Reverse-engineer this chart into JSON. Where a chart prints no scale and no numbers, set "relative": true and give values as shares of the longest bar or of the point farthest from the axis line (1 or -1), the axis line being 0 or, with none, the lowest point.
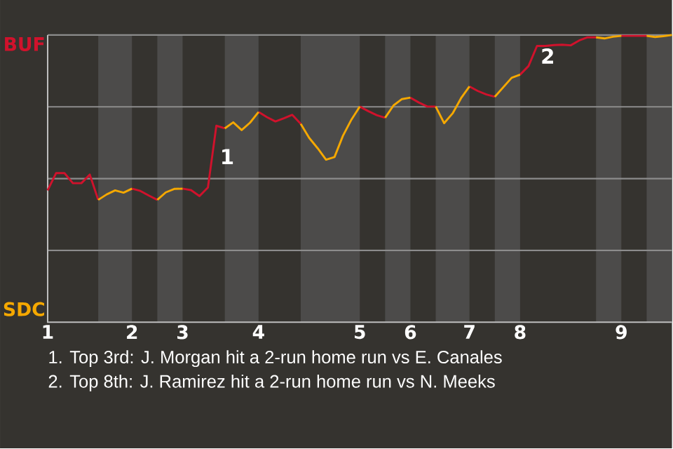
{
  "chart_data": {
    "type": "line",
    "categories": [
      "1",
      null,
      null,
      null,
      null,
      null,
      null,
      null,
      null,
      null,
      "2",
      null,
      null,
      null,
      null,
      null,
      "3",
      null,
      null,
      null,
      null,
      null,
      null,
      null,
      null,
      "4",
      null,
      null,
      null,
      null,
      null,
      null,
      null,
      null,
      null,
      null,
      null,
      "5",
      null,
      null,
      null,
      null,
      null,
      "6",
      null,
      null,
      null,
      null,
      null,
      null,
      "7",
      null,
      null,
      null,
      null,
      null,
      "8",
      null,
      null,
      null,
      null,
      null,
      null,
      null,
      null,
      null,
      null,
      null,
      "9",
      null,
      null,
      null,
      null,
      null,
      null
    ],
    "relative": true,
    "grid": "y",
    "series": [
      {
        "color": "#d0122c",
        "values": [
          0.459,
          0.519,
          0.519,
          0.484,
          0.484,
          0.514,
          0.426,
          null,
          null,
          null,
          0.465,
          0.457,
          0.441,
          0.426,
          null,
          null,
          0.465,
          0.46,
          0.439,
          0.469,
          0.684,
          0.675,
          null,
          null,
          null,
          0.732,
          0.714,
          0.699,
          0.71,
          0.722,
          0.691,
          null,
          null,
          null,
          null,
          null,
          null,
          0.751,
          0.735,
          0.721,
          0.712,
          null,
          null,
          0.782,
          0.765,
          0.751,
          0.751,
          null,
          null,
          null,
          0.821,
          0.805,
          0.793,
          0.785,
          null,
          null,
          0.862,
          0.892,
          0.962,
          0.962,
          0.965,
          0.966,
          0.964,
          0.981,
          0.992,
          0.992,
          null,
          null,
          0.997,
          0.997,
          0.997,
          0.997,
          null,
          null,
          null
        ]
      },
      {
        "color": "#f5a800",
        "values": [
          null,
          null,
          null,
          null,
          null,
          null,
          0.426,
          0.445,
          0.459,
          0.451,
          0.465,
          null,
          null,
          0.426,
          0.452,
          0.464,
          0.465,
          null,
          null,
          null,
          null,
          0.675,
          0.696,
          0.669,
          0.695,
          0.732,
          null,
          null,
          null,
          null,
          0.691,
          0.642,
          0.606,
          0.566,
          0.575,
          0.649,
          0.705,
          0.751,
          null,
          null,
          0.712,
          0.755,
          0.777,
          0.782,
          null,
          null,
          0.751,
          0.693,
          0.727,
          0.78,
          0.821,
          null,
          null,
          0.785,
          0.818,
          0.851,
          0.862,
          null,
          null,
          null,
          null,
          null,
          null,
          null,
          null,
          0.992,
          0.988,
          0.994,
          0.997,
          null,
          null,
          0.997,
          0.993,
          0.996,
          1
        ]
      }
    ],
    "annotations": [
      "BUF",
      "SDC",
      "1",
      "2",
      "1. Top 3rd: J. Morgan hit a 2-run home run vs E. Canales",
      "2. Top 8th: J. Ramirez hit a 2-run home run vs N. Meeks"
    ]
  }
}
